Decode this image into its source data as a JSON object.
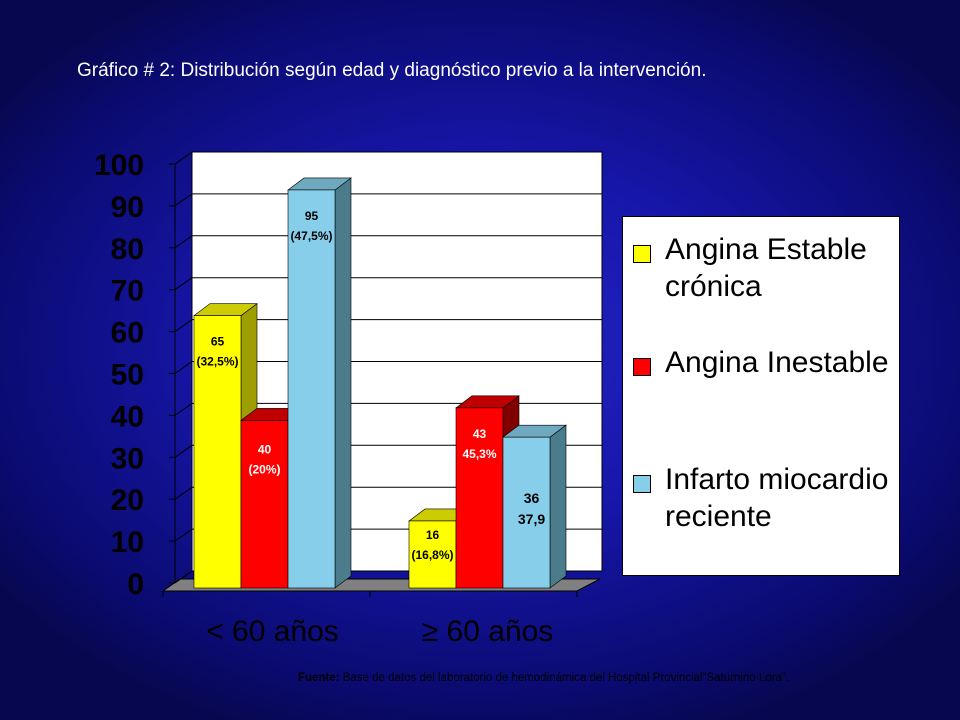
{
  "title": "Gráfico # 2: Distribución según edad y diagnóstico previo a la intervención.",
  "source": {
    "prefix": "Fuente:",
    "text": " Base de datos del laboratorio de hemodinámica del Hospital Provincial”Saturnino Lora”."
  },
  "colors": {
    "background": "#1616a8",
    "plot_wall": "#ffffff",
    "floor": "#808080",
    "series": [
      {
        "front": "#ffff00",
        "side": "#9e9e00",
        "top": "#cccc00"
      },
      {
        "front": "#ff0000",
        "side": "#800000",
        "top": "#c00000"
      },
      {
        "front": "#87ceeb",
        "side": "#4a7c8c",
        "top": "#6fa9bf"
      }
    ]
  },
  "chart_data": {
    "type": "bar",
    "style": "3d-clustered-column",
    "title": "Gráfico # 2: Distribución según edad y diagnóstico previo a la intervención.",
    "categories": [
      "< 60 años",
      "≥ 60 años"
    ],
    "ylim": [
      0,
      100
    ],
    "yticks": [
      "0",
      "10",
      "20",
      "30",
      "40",
      "50",
      "60",
      "70",
      "80",
      "90",
      "100"
    ],
    "legend_position": "right",
    "series": [
      {
        "name": "Angina Estable crónica",
        "values": [
          65,
          16
        ],
        "labels": [
          [
            "65",
            "(32,5%)"
          ],
          [
            "16",
            "(16,8%)"
          ]
        ]
      },
      {
        "name": "Angina Inestable",
        "values": [
          40,
          43
        ],
        "labels": [
          [
            "40",
            "(20%)"
          ],
          [
            "43",
            "45,3%"
          ]
        ]
      },
      {
        "name": "Infarto miocardio reciente",
        "values": [
          95,
          36
        ],
        "labels": [
          [
            "95",
            "(47,5%)"
          ],
          [
            "36",
            "37,9"
          ]
        ]
      }
    ]
  }
}
